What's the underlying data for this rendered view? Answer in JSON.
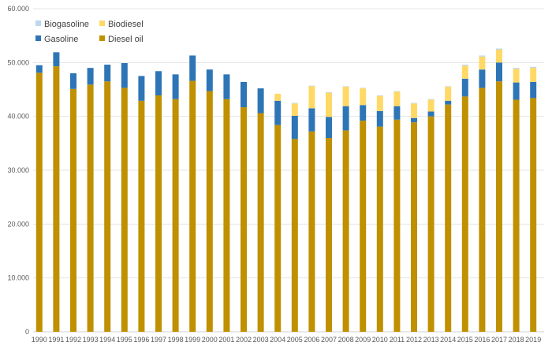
{
  "chart_data": {
    "type": "bar",
    "stacked": true,
    "title": "",
    "xlabel": "",
    "ylabel": "",
    "ylim": [
      0,
      60000
    ],
    "yticks": [
      "0",
      "10.000",
      "20.000",
      "30.000",
      "40.000",
      "50.000",
      "60.000"
    ],
    "ytick_values": [
      0,
      10000,
      20000,
      30000,
      40000,
      50000,
      60000
    ],
    "grid": true,
    "legend_position": "top-left",
    "categories": [
      "1990",
      "1991",
      "1992",
      "1993",
      "1994",
      "1995",
      "1996",
      "1997",
      "1998",
      "1999",
      "2000",
      "2001",
      "2002",
      "2003",
      "2004",
      "2005",
      "2006",
      "2007",
      "2008",
      "2009",
      "2010",
      "2011",
      "2012",
      "2013",
      "2014",
      "2015",
      "2016",
      "2017",
      "2018",
      "2019"
    ],
    "series": [
      {
        "name": "Diesel oil",
        "color": "#BF9000",
        "values": [
          48100,
          49300,
          45100,
          45900,
          46500,
          45300,
          42900,
          43900,
          43200,
          46600,
          44700,
          43200,
          41700,
          40600,
          38400,
          35800,
          37200,
          36000,
          37400,
          39200,
          38100,
          39400,
          38900,
          40000,
          42200,
          43700,
          45300,
          46500,
          43100,
          43400
        ]
      },
      {
        "name": "Gasoline",
        "color": "#2E75B6",
        "values": [
          1400,
          2600,
          2900,
          3100,
          3100,
          4600,
          4600,
          4500,
          4600,
          4700,
          4000,
          4600,
          4700,
          4600,
          4500,
          4300,
          4300,
          3900,
          4500,
          2900,
          2900,
          2500,
          800,
          900,
          700,
          3300,
          3400,
          3500,
          3200,
          3000
        ]
      },
      {
        "name": "Biodiesel",
        "color": "#FFD966",
        "values": [
          0,
          0,
          0,
          0,
          0,
          0,
          0,
          0,
          0,
          0,
          0,
          0,
          0,
          0,
          1300,
          2300,
          4100,
          4500,
          3600,
          3100,
          2800,
          2700,
          2700,
          2200,
          2600,
          2400,
          2400,
          2400,
          2500,
          2600
        ]
      },
      {
        "name": "Biogasoline",
        "color": "#BDD7EE",
        "values": [
          0,
          0,
          0,
          0,
          0,
          0,
          0,
          0,
          0,
          0,
          0,
          0,
          0,
          0,
          0,
          100,
          100,
          100,
          100,
          100,
          100,
          100,
          100,
          100,
          100,
          200,
          200,
          200,
          200,
          200
        ]
      }
    ],
    "legend_order": [
      "Biogasoline",
      "Biodiesel",
      "Gasoline",
      "Diesel oil"
    ]
  }
}
